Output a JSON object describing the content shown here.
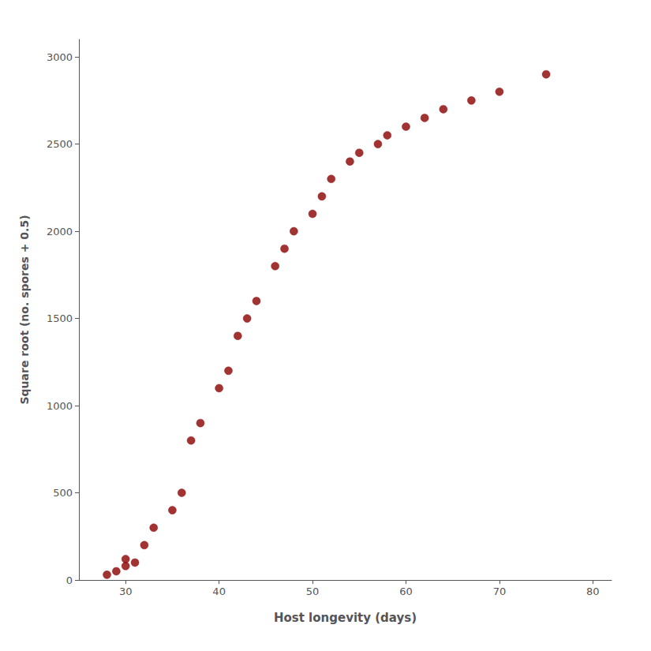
{
  "chart_data": {
    "type": "scatter",
    "xlabel": "Host longevity (days)",
    "ylabel": "Square root (no. spores + 0.5)",
    "x": [
      28,
      29,
      30,
      30,
      31,
      32,
      33,
      35,
      36,
      37,
      38,
      40,
      41,
      42,
      43,
      44,
      46,
      47,
      48,
      50,
      51,
      52,
      54,
      55,
      57,
      58,
      60,
      62,
      64,
      67,
      70,
      75
    ],
    "values": [
      30,
      50,
      80,
      120,
      100,
      200,
      300,
      400,
      500,
      800,
      900,
      1100,
      1200,
      1400,
      1500,
      1600,
      1800,
      1900,
      2000,
      2100,
      2200,
      2300,
      2400,
      2450,
      2500,
      2550,
      2600,
      2650,
      2700,
      2750,
      2800,
      2900
    ],
    "xlim": [
      25,
      82
    ],
    "ylim": [
      0,
      3100
    ],
    "xticks": [
      30,
      40,
      50,
      60,
      70,
      80
    ],
    "yticks": [
      0,
      500,
      1000,
      1500,
      2000,
      2500,
      3000
    ],
    "color": "#8B0000",
    "grid": false
  }
}
